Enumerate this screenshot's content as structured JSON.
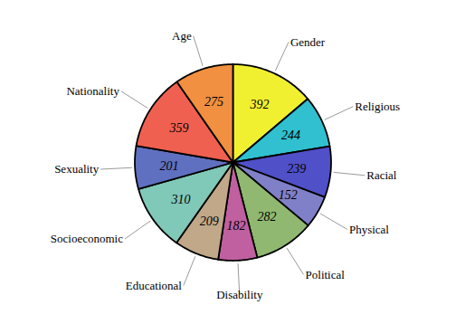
{
  "chart_data": {
    "type": "pie",
    "categories": [
      "Gender",
      "Religious",
      "Racial",
      "Physical",
      "Political",
      "Disability",
      "Educational",
      "Socioeconomic",
      "Sexuality",
      "Nationality",
      "Age"
    ],
    "values": [
      392,
      244,
      239,
      152,
      282,
      182,
      209,
      310,
      201,
      359,
      275
    ],
    "colors": [
      "#f0f030",
      "#30c0d0",
      "#5050c8",
      "#8080c8",
      "#90b870",
      "#c060a0",
      "#c0a888",
      "#80c8b8",
      "#6070c0",
      "#f06050",
      "#f09040"
    ],
    "data_labels": true
  }
}
